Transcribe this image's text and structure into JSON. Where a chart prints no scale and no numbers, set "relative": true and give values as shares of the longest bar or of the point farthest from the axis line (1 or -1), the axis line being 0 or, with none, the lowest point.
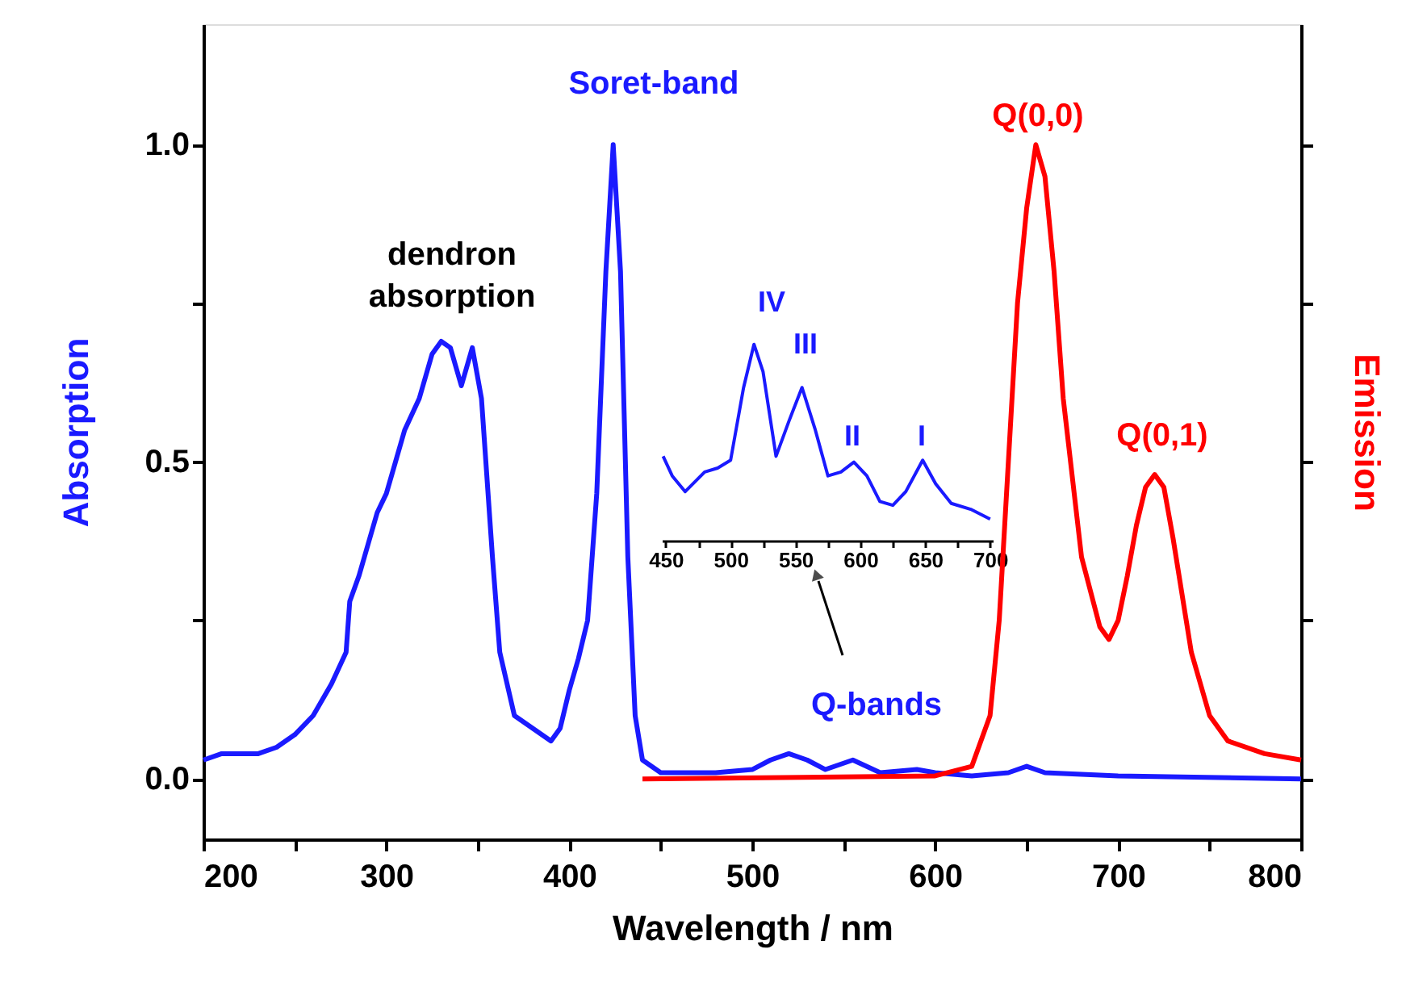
{
  "chart_data": [
    {
      "type": "line",
      "xlabel": "Wavelength / nm",
      "ylabel": "Absorption",
      "y2label": "Emission",
      "xlim": [
        200,
        800
      ],
      "xticks": [
        200,
        {
          "value": 250,
          "label": null
        },
        300,
        {
          "value": 350,
          "label": null
        },
        400,
        {
          "value": 450,
          "label": null
        },
        500,
        {
          "value": 550,
          "label": null
        },
        600,
        {
          "value": 650,
          "label": null
        },
        700,
        {
          "value": 750,
          "label": null
        },
        800
      ],
      "ylim": [
        -0.095,
        1.19
      ],
      "yticks": [
        {
          "value": 0,
          "label": "0.0"
        },
        {
          "value": 0.25,
          "label": null
        },
        {
          "value": 0.5,
          "label": "0.5"
        },
        {
          "value": 0.75,
          "label": null
        },
        {
          "value": 1.0,
          "label": "1.0"
        }
      ],
      "grid": false,
      "marker": "none",
      "line_style": "solid",
      "series": [
        {
          "color": "#1a1aff",
          "x": [
            200,
            210,
            220,
            230,
            240,
            250,
            260,
            270,
            278,
            280,
            285,
            290,
            295,
            300,
            305,
            310,
            318,
            325,
            330,
            335,
            341,
            347,
            352,
            358,
            362,
            370,
            380,
            390,
            395,
            400,
            405,
            410,
            415,
            420,
            424,
            428,
            432,
            436,
            440,
            450,
            480,
            500,
            510,
            520,
            530,
            540,
            555,
            570,
            590,
            600,
            620,
            640,
            650,
            660,
            700,
            800
          ],
          "values": [
            0.03,
            0.04,
            0.04,
            0.04,
            0.05,
            0.07,
            0.1,
            0.15,
            0.2,
            0.28,
            0.32,
            0.37,
            0.42,
            0.45,
            0.5,
            0.55,
            0.6,
            0.67,
            0.69,
            0.68,
            0.62,
            0.68,
            0.6,
            0.35,
            0.2,
            0.1,
            0.08,
            0.06,
            0.08,
            0.14,
            0.19,
            0.25,
            0.45,
            0.8,
            1.0,
            0.8,
            0.35,
            0.1,
            0.03,
            0.01,
            0.01,
            0.015,
            0.03,
            0.04,
            0.03,
            0.015,
            0.03,
            0.01,
            0.015,
            0.01,
            0.005,
            0.01,
            0.02,
            0.01,
            0.005,
            0.0
          ]
        },
        {
          "color": "#ff0000",
          "x": [
            440,
            600,
            620,
            630,
            635,
            640,
            645,
            650,
            655,
            660,
            665,
            670,
            680,
            690,
            695,
            700,
            705,
            710,
            715,
            720,
            725,
            730,
            740,
            750,
            760,
            780,
            800
          ],
          "values": [
            0.0,
            0.005,
            0.02,
            0.1,
            0.25,
            0.5,
            0.75,
            0.9,
            1.0,
            0.95,
            0.8,
            0.6,
            0.35,
            0.24,
            0.22,
            0.25,
            0.32,
            0.4,
            0.46,
            0.48,
            0.46,
            0.38,
            0.2,
            0.1,
            0.06,
            0.04,
            0.03
          ]
        }
      ],
      "annotations": [
        "dendron\nabsorption",
        "Soret-band",
        "Q-bands",
        "Q(0,0)",
        "Q(0,1)"
      ]
    },
    {
      "type": "line",
      "relative": true,
      "xlim": [
        447,
        702
      ],
      "xticks": [
        450,
        {
          "value": 475,
          "label": null
        },
        500,
        {
          "value": 525,
          "label": null
        },
        550,
        {
          "value": 575,
          "label": null
        },
        600,
        {
          "value": 625,
          "label": null
        },
        650,
        {
          "value": 675,
          "label": null
        },
        700
      ],
      "series": [
        {
          "color": "#1a1aff",
          "x": [
            448,
            455,
            465,
            480,
            490,
            500,
            510,
            518,
            525,
            535,
            545,
            555,
            565,
            575,
            585,
            595,
            605,
            615,
            625,
            635,
            648,
            658,
            670,
            685,
            700
          ],
          "values": [
            0.43,
            0.33,
            0.25,
            0.35,
            0.37,
            0.41,
            0.78,
            1.0,
            0.86,
            0.43,
            0.61,
            0.78,
            0.57,
            0.33,
            0.35,
            0.4,
            0.33,
            0.2,
            0.18,
            0.25,
            0.41,
            0.29,
            0.19,
            0.16,
            0.11
          ]
        }
      ],
      "annotations": [
        "IV",
        "III",
        "II",
        "I"
      ]
    }
  ]
}
